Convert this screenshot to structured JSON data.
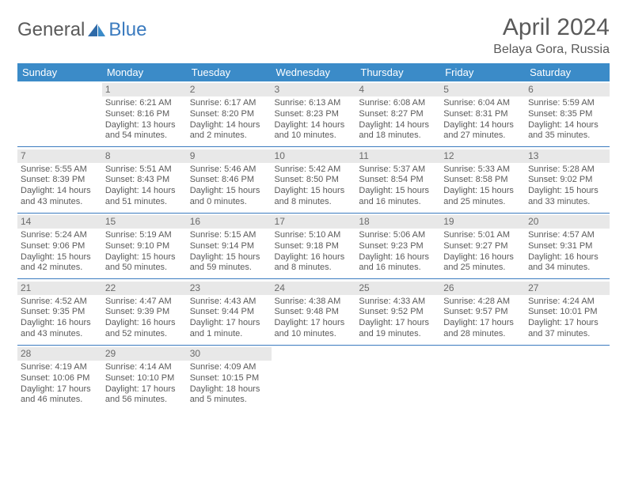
{
  "brand": {
    "text1": "General",
    "text2": "Blue"
  },
  "title": "April 2024",
  "location": "Belaya Gora, Russia",
  "colors": {
    "header_bg": "#3b8bc8",
    "header_text": "#ffffff",
    "accent": "#3b7bbf",
    "text": "#5a5a5a",
    "daynum_bg": "#e8e8e8",
    "background": "#ffffff"
  },
  "day_headers": [
    "Sunday",
    "Monday",
    "Tuesday",
    "Wednesday",
    "Thursday",
    "Friday",
    "Saturday"
  ],
  "weeks": [
    [
      null,
      {
        "n": "1",
        "sr": "Sunrise: 6:21 AM",
        "ss": "Sunset: 8:16 PM",
        "d1": "Daylight: 13 hours",
        "d2": "and 54 minutes."
      },
      {
        "n": "2",
        "sr": "Sunrise: 6:17 AM",
        "ss": "Sunset: 8:20 PM",
        "d1": "Daylight: 14 hours",
        "d2": "and 2 minutes."
      },
      {
        "n": "3",
        "sr": "Sunrise: 6:13 AM",
        "ss": "Sunset: 8:23 PM",
        "d1": "Daylight: 14 hours",
        "d2": "and 10 minutes."
      },
      {
        "n": "4",
        "sr": "Sunrise: 6:08 AM",
        "ss": "Sunset: 8:27 PM",
        "d1": "Daylight: 14 hours",
        "d2": "and 18 minutes."
      },
      {
        "n": "5",
        "sr": "Sunrise: 6:04 AM",
        "ss": "Sunset: 8:31 PM",
        "d1": "Daylight: 14 hours",
        "d2": "and 27 minutes."
      },
      {
        "n": "6",
        "sr": "Sunrise: 5:59 AM",
        "ss": "Sunset: 8:35 PM",
        "d1": "Daylight: 14 hours",
        "d2": "and 35 minutes."
      }
    ],
    [
      {
        "n": "7",
        "sr": "Sunrise: 5:55 AM",
        "ss": "Sunset: 8:39 PM",
        "d1": "Daylight: 14 hours",
        "d2": "and 43 minutes."
      },
      {
        "n": "8",
        "sr": "Sunrise: 5:51 AM",
        "ss": "Sunset: 8:43 PM",
        "d1": "Daylight: 14 hours",
        "d2": "and 51 minutes."
      },
      {
        "n": "9",
        "sr": "Sunrise: 5:46 AM",
        "ss": "Sunset: 8:46 PM",
        "d1": "Daylight: 15 hours",
        "d2": "and 0 minutes."
      },
      {
        "n": "10",
        "sr": "Sunrise: 5:42 AM",
        "ss": "Sunset: 8:50 PM",
        "d1": "Daylight: 15 hours",
        "d2": "and 8 minutes."
      },
      {
        "n": "11",
        "sr": "Sunrise: 5:37 AM",
        "ss": "Sunset: 8:54 PM",
        "d1": "Daylight: 15 hours",
        "d2": "and 16 minutes."
      },
      {
        "n": "12",
        "sr": "Sunrise: 5:33 AM",
        "ss": "Sunset: 8:58 PM",
        "d1": "Daylight: 15 hours",
        "d2": "and 25 minutes."
      },
      {
        "n": "13",
        "sr": "Sunrise: 5:28 AM",
        "ss": "Sunset: 9:02 PM",
        "d1": "Daylight: 15 hours",
        "d2": "and 33 minutes."
      }
    ],
    [
      {
        "n": "14",
        "sr": "Sunrise: 5:24 AM",
        "ss": "Sunset: 9:06 PM",
        "d1": "Daylight: 15 hours",
        "d2": "and 42 minutes."
      },
      {
        "n": "15",
        "sr": "Sunrise: 5:19 AM",
        "ss": "Sunset: 9:10 PM",
        "d1": "Daylight: 15 hours",
        "d2": "and 50 minutes."
      },
      {
        "n": "16",
        "sr": "Sunrise: 5:15 AM",
        "ss": "Sunset: 9:14 PM",
        "d1": "Daylight: 15 hours",
        "d2": "and 59 minutes."
      },
      {
        "n": "17",
        "sr": "Sunrise: 5:10 AM",
        "ss": "Sunset: 9:18 PM",
        "d1": "Daylight: 16 hours",
        "d2": "and 8 minutes."
      },
      {
        "n": "18",
        "sr": "Sunrise: 5:06 AM",
        "ss": "Sunset: 9:23 PM",
        "d1": "Daylight: 16 hours",
        "d2": "and 16 minutes."
      },
      {
        "n": "19",
        "sr": "Sunrise: 5:01 AM",
        "ss": "Sunset: 9:27 PM",
        "d1": "Daylight: 16 hours",
        "d2": "and 25 minutes."
      },
      {
        "n": "20",
        "sr": "Sunrise: 4:57 AM",
        "ss": "Sunset: 9:31 PM",
        "d1": "Daylight: 16 hours",
        "d2": "and 34 minutes."
      }
    ],
    [
      {
        "n": "21",
        "sr": "Sunrise: 4:52 AM",
        "ss": "Sunset: 9:35 PM",
        "d1": "Daylight: 16 hours",
        "d2": "and 43 minutes."
      },
      {
        "n": "22",
        "sr": "Sunrise: 4:47 AM",
        "ss": "Sunset: 9:39 PM",
        "d1": "Daylight: 16 hours",
        "d2": "and 52 minutes."
      },
      {
        "n": "23",
        "sr": "Sunrise: 4:43 AM",
        "ss": "Sunset: 9:44 PM",
        "d1": "Daylight: 17 hours",
        "d2": "and 1 minute."
      },
      {
        "n": "24",
        "sr": "Sunrise: 4:38 AM",
        "ss": "Sunset: 9:48 PM",
        "d1": "Daylight: 17 hours",
        "d2": "and 10 minutes."
      },
      {
        "n": "25",
        "sr": "Sunrise: 4:33 AM",
        "ss": "Sunset: 9:52 PM",
        "d1": "Daylight: 17 hours",
        "d2": "and 19 minutes."
      },
      {
        "n": "26",
        "sr": "Sunrise: 4:28 AM",
        "ss": "Sunset: 9:57 PM",
        "d1": "Daylight: 17 hours",
        "d2": "and 28 minutes."
      },
      {
        "n": "27",
        "sr": "Sunrise: 4:24 AM",
        "ss": "Sunset: 10:01 PM",
        "d1": "Daylight: 17 hours",
        "d2": "and 37 minutes."
      }
    ],
    [
      {
        "n": "28",
        "sr": "Sunrise: 4:19 AM",
        "ss": "Sunset: 10:06 PM",
        "d1": "Daylight: 17 hours",
        "d2": "and 46 minutes."
      },
      {
        "n": "29",
        "sr": "Sunrise: 4:14 AM",
        "ss": "Sunset: 10:10 PM",
        "d1": "Daylight: 17 hours",
        "d2": "and 56 minutes."
      },
      {
        "n": "30",
        "sr": "Sunrise: 4:09 AM",
        "ss": "Sunset: 10:15 PM",
        "d1": "Daylight: 18 hours",
        "d2": "and 5 minutes."
      },
      null,
      null,
      null,
      null
    ]
  ]
}
